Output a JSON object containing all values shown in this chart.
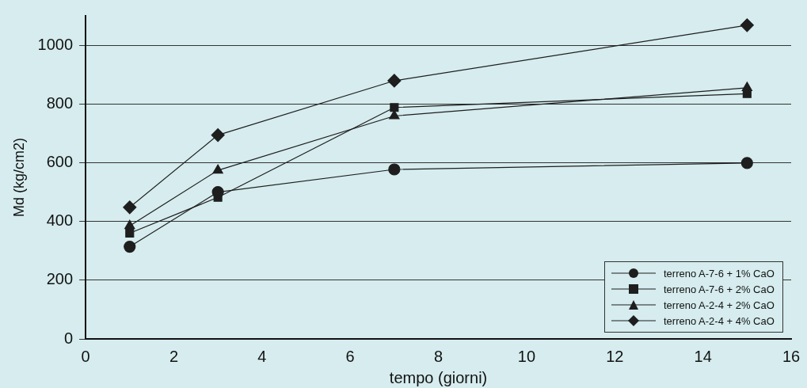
{
  "chart_data": {
    "type": "line",
    "xlabel": "tempo (giorni)",
    "ylabel": "Md (kg/cm2)",
    "x": [
      1,
      3,
      7,
      15
    ],
    "series": [
      {
        "name": "terreno A-7-6 + 1% CaO",
        "color": "#1e1e1e",
        "marker": "circle",
        "values": [
          314,
          500,
          577,
          599
        ]
      },
      {
        "name": "terreno A-7-6 + 2% CaO",
        "color": "#1e1e1e",
        "marker": "square",
        "values": [
          360,
          482,
          788,
          835
        ]
      },
      {
        "name": "terreno A-2-4 + 2% CaO",
        "color": "#1e1e1e",
        "marker": "triangle",
        "values": [
          385,
          574,
          759,
          855
        ]
      },
      {
        "name": "terreno A-2-4 + 4% CaO",
        "color": "#1e1e1e",
        "marker": "diamond",
        "values": [
          448,
          694,
          879,
          1068
        ]
      }
    ],
    "xlim": [
      0,
      16
    ],
    "xticks": [
      0,
      2,
      4,
      6,
      8,
      10,
      12,
      14,
      16
    ],
    "ylim": [
      0,
      1100
    ],
    "yticks": [
      0,
      200,
      400,
      600,
      800,
      1000
    ],
    "grid": "y",
    "legend": "bottom right",
    "line_style": "solid"
  }
}
